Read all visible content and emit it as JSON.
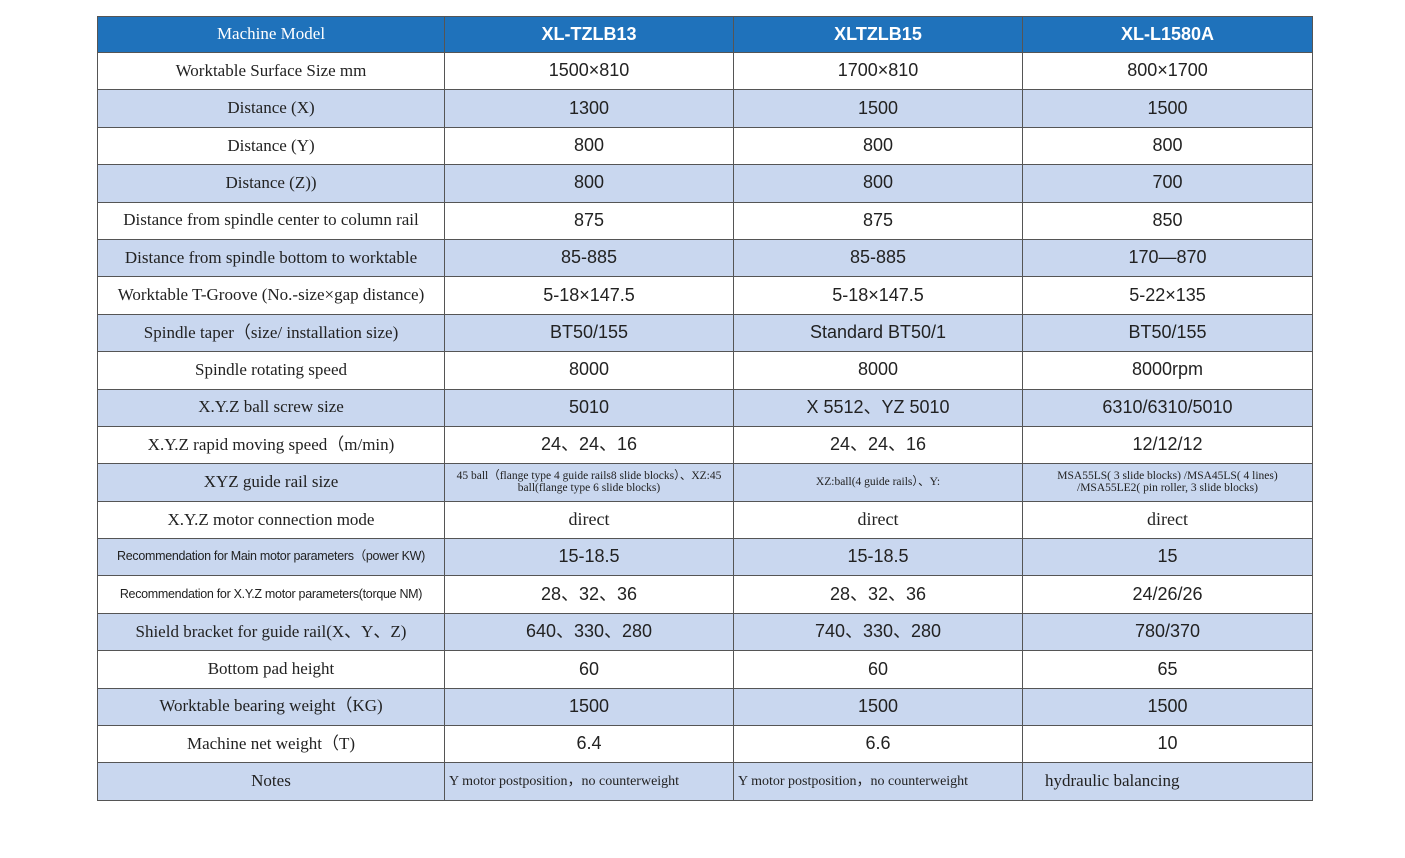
{
  "table": {
    "header": [
      "Machine Model",
      "XL-TZLB13",
      "XLTZLB15",
      "XL-L1580A"
    ],
    "rows": [
      [
        "Worktable Surface Size mm",
        "1500×810",
        "1700×810",
        "800×1700"
      ],
      [
        "Distance (X)",
        "1300",
        "1500",
        "1500"
      ],
      [
        "Distance (Y)",
        "800",
        "800",
        "800"
      ],
      [
        "Distance (Z))",
        "800",
        "800",
        "700"
      ],
      [
        "Distance from spindle center to column rail",
        "875",
        "875",
        "850"
      ],
      [
        "Distance from spindle bottom to worktable",
        "85-885",
        "85-885",
        "170—870"
      ],
      [
        "Worktable T-Groove (No.-size×gap distance)",
        "5-18×147.5",
        "5-18×147.5",
        "5-22×135"
      ],
      [
        "Spindle taper（size/ installation size)",
        "BT50/155",
        "Standard BT50/1",
        "BT50/155"
      ],
      [
        "Spindle rotating speed",
        "8000",
        "8000",
        "8000rpm"
      ],
      [
        "X.Y.Z ball screw size",
        "5010",
        "X  5512、YZ  5010",
        "6310/6310/5010"
      ],
      [
        "X.Y.Z rapid moving speed（m/min)",
        "24、24、16",
        "24、24、16",
        "12/12/12"
      ],
      [
        "XYZ guide rail size",
        "45 ball（flange type 4 guide rails8 slide blocks）、XZ:45 ball(flange type 6 slide blocks)",
        "XZ:ball(4 guide rails）、Y:",
        "MSA55LS( 3 slide blocks) /MSA45LS( 4 lines) /MSA55LE2( pin roller, 3 slide blocks)"
      ],
      [
        "X.Y.Z motor connection mode",
        "direct",
        "direct",
        "direct"
      ],
      [
        "Recommendation for Main motor parameters（power KW)",
        "15-18.5",
        "15-18.5",
        "15"
      ],
      [
        "Recommendation for X.Y.Z motor parameters(torque NM)",
        "28、32、36",
        "28、32、36",
        "24/26/26"
      ],
      [
        "Shield bracket for guide rail(X、Y、Z)",
        "640、330、280",
        "740、330、280",
        "780/370"
      ],
      [
        "Bottom pad height",
        "60",
        "60",
        "65"
      ],
      [
        "Worktable bearing weight（KG)",
        "1500",
        "1500",
        "1500"
      ],
      [
        "Machine net weight（T)",
        "6.4",
        "6.6",
        "10"
      ],
      [
        "Notes",
        "Y motor postposition，no counterweight",
        "Y motor postposition，no counterweight",
        "hydraulic balancing"
      ]
    ]
  }
}
